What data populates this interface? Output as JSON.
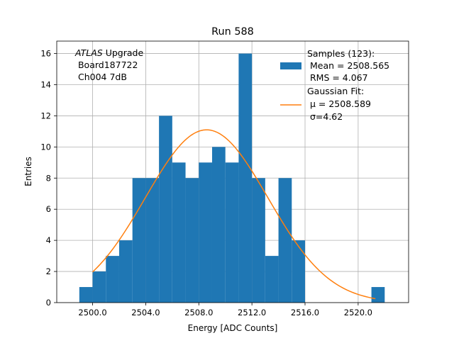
{
  "chart_data": {
    "type": "bar",
    "title": "Run 588",
    "xlabel": "Energy [ADC Counts]",
    "ylabel": "Entries",
    "xlim": [
      2497.3,
      2523.8
    ],
    "ylim": [
      0,
      16.8
    ],
    "grid": true,
    "xticks": [
      2500,
      2504,
      2508,
      2512,
      2516,
      2520
    ],
    "xtick_labels": [
      "2500.0",
      "2504.0",
      "2508.0",
      "2512.0",
      "2516.0",
      "2520.0"
    ],
    "yticks": [
      0,
      2,
      4,
      6,
      8,
      10,
      12,
      14,
      16
    ],
    "ytick_labels": [
      "0",
      "2",
      "4",
      "6",
      "8",
      "10",
      "12",
      "14",
      "16"
    ],
    "hist_bin_edges": [
      2499.0,
      2500.0,
      2501.0,
      2502.0,
      2503.0,
      2504.0,
      2505.0,
      2506.0,
      2507.0,
      2508.0,
      2509.0,
      2510.0,
      2511.0,
      2512.0,
      2513.0,
      2514.0,
      2515.0,
      2516.0,
      2517.0,
      2518.0,
      2519.0,
      2520.0,
      2521.0,
      2522.0
    ],
    "hist_counts": [
      1,
      2,
      3,
      4,
      8,
      8,
      12,
      9,
      8,
      9,
      10,
      9,
      16,
      8,
      3,
      8,
      4,
      0,
      0,
      0,
      0,
      0,
      1
    ],
    "fit_curve": {
      "mu": 2508.589,
      "sigma": 4.62,
      "amplitude": 11.1,
      "x_range": [
        2500.0,
        2521.3
      ]
    },
    "series": [
      {
        "name": "Samples (123):",
        "color": "#1f77b4",
        "kind": "histogram"
      },
      {
        "name": "Gaussian Fit:",
        "color": "#ff7f0e",
        "kind": "line"
      }
    ],
    "legend": {
      "placement": "top-right",
      "samples_lines": [
        "Samples (123):",
        " Mean = 2508.565",
        " RMS = 4.067"
      ],
      "fit_lines": [
        "Gaussian Fit:",
        " μ = 2508.589",
        " σ=4.62"
      ]
    },
    "annotation": {
      "placement": "top-left",
      "italic_word": "ATLAS",
      "first_line_rest": " Upgrade",
      "lines": [
        " Board187722",
        " Ch004 7dB"
      ]
    }
  }
}
